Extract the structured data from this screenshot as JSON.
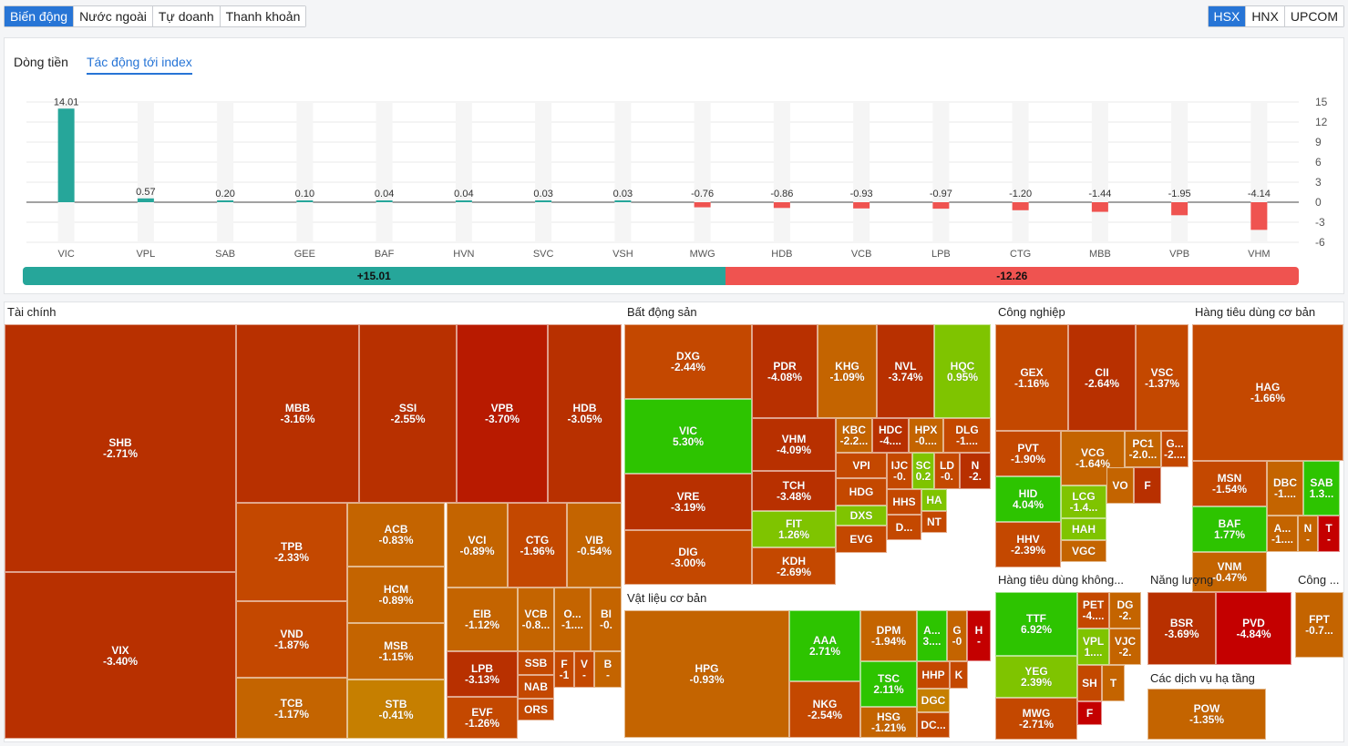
{
  "top_tabs": [
    "Biến động",
    "Nước ngoài",
    "Tự doanh",
    "Thanh khoản"
  ],
  "exchange_tabs": [
    "HSX",
    "HNX",
    "UPCOM"
  ],
  "panel_tabs": [
    "Dòng tiền",
    "Tác động tới index"
  ],
  "colors": {
    "accent": "#2775d6",
    "up": "#26a69a",
    "down": "#ef5350"
  },
  "chart_data": {
    "type": "bar",
    "categories": [
      "VIC",
      "VPL",
      "SAB",
      "GEE",
      "BAF",
      "HVN",
      "SVC",
      "VSH",
      "MWG",
      "HDB",
      "VCB",
      "LPB",
      "CTG",
      "MBB",
      "VPB",
      "VHM"
    ],
    "values": [
      14.01,
      0.57,
      0.2,
      0.1,
      0.04,
      0.04,
      0.03,
      0.03,
      -0.76,
      -0.86,
      -0.93,
      -0.97,
      -1.2,
      -1.44,
      -1.95,
      -4.14
    ],
    "value_labels": [
      "14.01",
      "0.57",
      "0.20",
      "0.10",
      "0.04",
      "0.04",
      "0.03",
      "0.03",
      "-0.76",
      "-0.86",
      "-0.93",
      "-0.97",
      "-1.20",
      "-1.44",
      "-1.95",
      "-4.14"
    ],
    "y_ticks": [
      "15",
      "12",
      "9",
      "6",
      "3",
      "0",
      "-3",
      "-6"
    ],
    "ylim": [
      -6,
      15
    ],
    "grid": true
  },
  "summary": {
    "positive": "+15.01",
    "negative": "-12.26",
    "positive_value": 15.01,
    "negative_value": 12.26
  },
  "sectors": [
    {
      "title": "Tài chính",
      "cells": [
        [
          "SHB",
          "-2.71%"
        ],
        [
          "VIX",
          "-3.40%"
        ],
        [
          "MBB",
          "-3.16%"
        ],
        [
          "SSI",
          "-2.55%"
        ],
        [
          "VPB",
          "-3.70%"
        ],
        [
          "HDB",
          "-3.05%"
        ],
        [
          "TPB",
          "-2.33%"
        ],
        [
          "ACB",
          "-0.83%"
        ],
        [
          "VCI",
          "-0.89%"
        ],
        [
          "CTG",
          "-1.96%"
        ],
        [
          "VIB",
          "-0.54%"
        ],
        [
          "HCM",
          "-0.89%"
        ],
        [
          "VND",
          "-1.87%"
        ],
        [
          "EIB",
          "-1.12%"
        ],
        [
          "VCB",
          "-0.8..."
        ],
        [
          "O...",
          "-1...."
        ],
        [
          "BI",
          "-0."
        ],
        [
          "MSB",
          "-1.15%"
        ],
        [
          "LPB",
          "-3.13%"
        ],
        [
          "SSB",
          ""
        ],
        [
          "F",
          "-1"
        ],
        [
          "V",
          "-"
        ],
        [
          "B",
          "-"
        ],
        [
          "NAB",
          ""
        ],
        [
          "TCB",
          "-1.17%"
        ],
        [
          "STB",
          "-0.41%"
        ],
        [
          "EVF",
          "-1.26%"
        ],
        [
          "ORS",
          ""
        ]
      ]
    },
    {
      "title": "Bất động sản",
      "cells": [
        [
          "DXG",
          "-2.44%"
        ],
        [
          "PDR",
          "-4.08%"
        ],
        [
          "KHG",
          "-1.09%"
        ],
        [
          "NVL",
          "-3.74%"
        ],
        [
          "HQC",
          "0.95%"
        ],
        [
          "VIC",
          "5.30%"
        ],
        [
          "VHM",
          "-4.09%"
        ],
        [
          "KBC",
          "-2.2..."
        ],
        [
          "HDC",
          "-4...."
        ],
        [
          "HPX",
          "-0...."
        ],
        [
          "DLG",
          "-1...."
        ],
        [
          "VRE",
          "-3.19%"
        ],
        [
          "TCH",
          "-3.48%"
        ],
        [
          "VPI",
          ""
        ],
        [
          "IJC",
          "-0."
        ],
        [
          "SC",
          "0.2"
        ],
        [
          "LD",
          "-0."
        ],
        [
          "N",
          "-2."
        ],
        [
          "HDG",
          ""
        ],
        [
          "HHS",
          ""
        ],
        [
          "HA",
          ""
        ],
        [
          "FIT",
          "1.26%"
        ],
        [
          "DXS",
          ""
        ],
        [
          "D...",
          ""
        ],
        [
          "NT",
          ""
        ],
        [
          "DIG",
          "-3.00%"
        ],
        [
          "KDH",
          "-2.69%"
        ],
        [
          "EVG",
          ""
        ]
      ]
    },
    {
      "title": "Vật liệu cơ bản",
      "cells": [
        [
          "HPG",
          "-0.93%"
        ],
        [
          "AAA",
          "2.71%"
        ],
        [
          "DPM",
          "-1.94%"
        ],
        [
          "A...",
          "3...."
        ],
        [
          "G",
          "-0"
        ],
        [
          "H",
          "-"
        ],
        [
          "TSC",
          "2.11%"
        ],
        [
          "HHP",
          ""
        ],
        [
          "K",
          ""
        ],
        [
          "DGC",
          ""
        ],
        [
          "NKG",
          "-2.54%"
        ],
        [
          "HSG",
          "-1.21%"
        ],
        [
          "DC...",
          ""
        ]
      ]
    },
    {
      "title": "Công nghiệp",
      "cells": [
        [
          "GEX",
          "-1.16%"
        ],
        [
          "CII",
          "-2.64%"
        ],
        [
          "VSC",
          "-1.37%"
        ],
        [
          "PVT",
          "-1.90%"
        ],
        [
          "VCG",
          "-1.64%"
        ],
        [
          "PC1",
          "-2.0..."
        ],
        [
          "G...",
          "-2...."
        ],
        [
          "HID",
          "4.04%"
        ],
        [
          "LCG",
          "-1.4..."
        ],
        [
          "VO",
          ""
        ],
        [
          "F",
          ""
        ],
        [
          "HAH",
          ""
        ],
        [
          "HHV",
          "-2.39%"
        ],
        [
          "VGC",
          ""
        ]
      ]
    },
    {
      "title": "Hàng tiêu dùng cơ bản",
      "cells": [
        [
          "HAG",
          "-1.66%"
        ],
        [
          "MSN",
          "-1.54%"
        ],
        [
          "DBC",
          "-1...."
        ],
        [
          "SAB",
          "1.3..."
        ],
        [
          "BAF",
          "1.77%"
        ],
        [
          "A...",
          "-1...."
        ],
        [
          "N",
          "-"
        ],
        [
          "T",
          "-"
        ],
        [
          "VNM",
          "-0.47%"
        ]
      ]
    },
    {
      "title": "Hàng tiêu dùng không...",
      "cells": [
        [
          "TTF",
          "6.92%"
        ],
        [
          "PET",
          "-4...."
        ],
        [
          "DG",
          "-2."
        ],
        [
          "VPL",
          "1...."
        ],
        [
          "VJC",
          "-2."
        ],
        [
          "YEG",
          "2.39%"
        ],
        [
          "SH",
          ""
        ],
        [
          "T",
          ""
        ],
        [
          "F",
          ""
        ],
        [
          "MWG",
          "-2.71%"
        ]
      ]
    },
    {
      "title": "Năng lượng",
      "cells": [
        [
          "BSR",
          "-3.69%"
        ],
        [
          "PVD",
          "-4.84%"
        ]
      ]
    },
    {
      "title": "Các dịch vụ hạ tầng",
      "cells": [
        [
          "POW",
          "-1.35%"
        ]
      ]
    },
    {
      "title": "Công ...",
      "cells": [
        [
          "FPT",
          "-0.7..."
        ]
      ]
    }
  ]
}
